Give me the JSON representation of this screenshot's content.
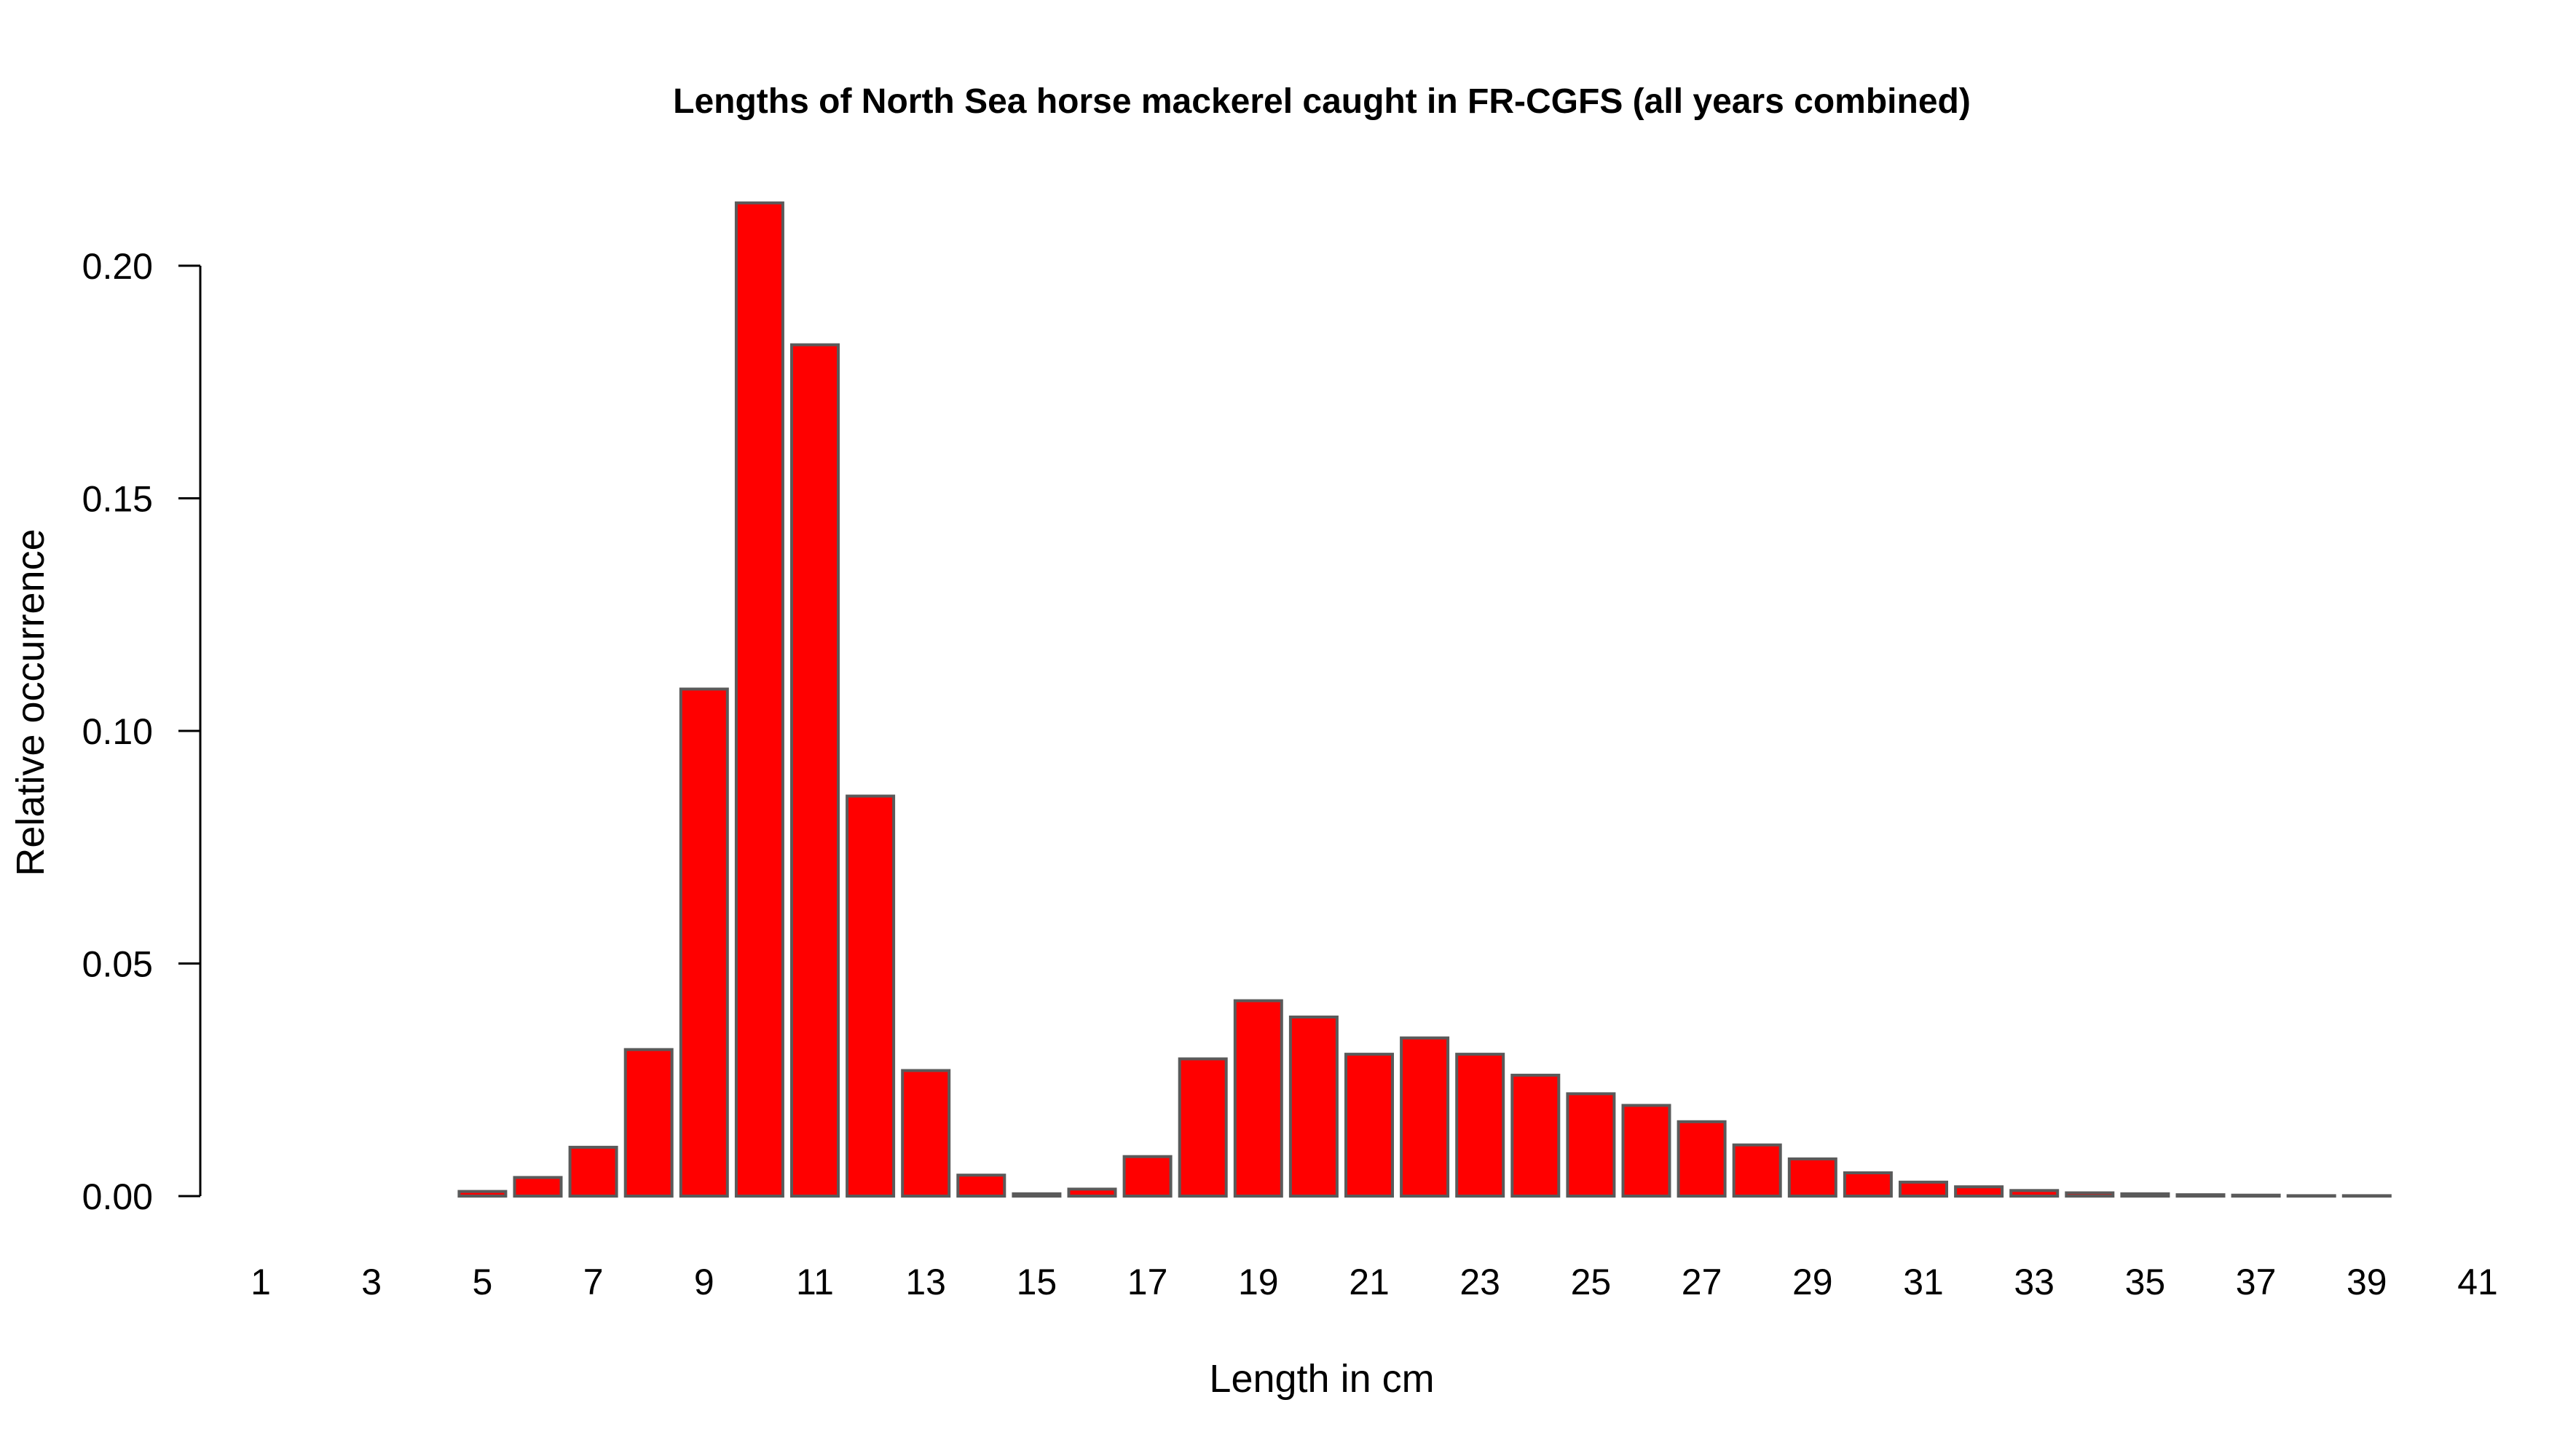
{
  "chart_data": {
    "type": "bar",
    "title": "Lengths of North Sea horse mackerel caught in FR-CGFS (all years combined)",
    "xlabel": "Length in cm",
    "ylabel": "Relative occurrence",
    "bar_color": "#ff0000",
    "bar_border_color": "#5a5a5a",
    "categories": [
      1,
      2,
      3,
      4,
      5,
      6,
      7,
      8,
      9,
      10,
      11,
      12,
      13,
      14,
      15,
      16,
      17,
      18,
      19,
      20,
      21,
      22,
      23,
      24,
      25,
      26,
      27,
      28,
      29,
      30,
      31,
      32,
      33,
      34,
      35,
      36,
      37,
      38,
      39,
      40,
      41
    ],
    "x_tick_labels": [
      "1",
      "3",
      "5",
      "7",
      "9",
      "11",
      "13",
      "15",
      "17",
      "19",
      "21",
      "23",
      "25",
      "27",
      "29",
      "31",
      "33",
      "35",
      "37",
      "39",
      "41"
    ],
    "values": [
      0.0,
      0.0,
      0.0,
      0.0,
      0.001,
      0.004,
      0.0105,
      0.0315,
      0.109,
      0.2135,
      0.183,
      0.086,
      0.027,
      0.0045,
      0.0005,
      0.0015,
      0.0085,
      0.0295,
      0.042,
      0.0385,
      0.0305,
      0.034,
      0.0305,
      0.026,
      0.022,
      0.0195,
      0.016,
      0.011,
      0.008,
      0.005,
      0.003,
      0.002,
      0.0012,
      0.0007,
      0.0005,
      0.0003,
      0.0002,
      0.0001,
      0.0001,
      0.0,
      0.0
    ],
    "ylim": [
      0,
      0.2
    ],
    "y_ticks": [
      "0.00",
      "0.05",
      "0.10",
      "0.15",
      "0.20"
    ],
    "grid": false,
    "legend": "none"
  }
}
